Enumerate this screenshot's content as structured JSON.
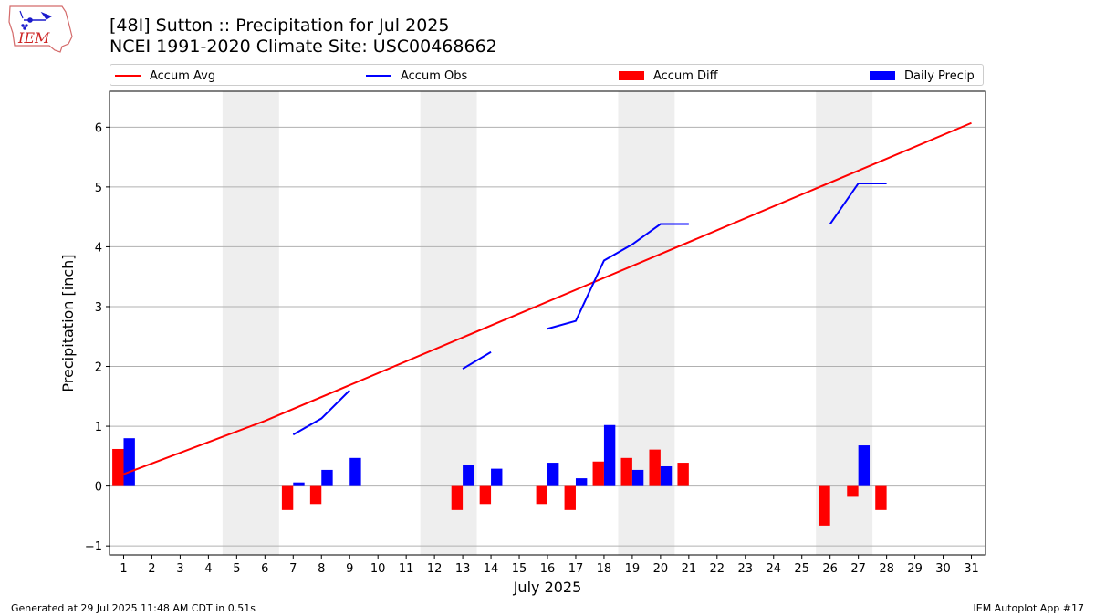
{
  "title_line1": "[48I] Sutton :: Precipitation for Jul 2025",
  "title_line2": "NCEI 1991-2020 Climate Site: USC00468662",
  "logo_text": "IEM",
  "legend": [
    {
      "label": "Accum Avg",
      "kind": "line",
      "color": "#ff0000"
    },
    {
      "label": "Accum Obs",
      "kind": "line",
      "color": "#0000ff"
    },
    {
      "label": "Accum Diff",
      "kind": "box",
      "color": "#ff0000"
    },
    {
      "label": "Daily Precip",
      "kind": "box",
      "color": "#0000ff"
    }
  ],
  "footer_left": "Generated at 29 Jul 2025 11:48 AM CDT in 0.51s",
  "footer_right": "IEM Autoplot App #17",
  "chart_data": {
    "type": "bar",
    "xlabel": "July 2025",
    "ylabel": "Precipitation [inch]",
    "ylim": [
      -1.15,
      6.6
    ],
    "xlim": [
      0.5,
      31.5
    ],
    "yticks": [
      -1,
      0,
      1,
      2,
      3,
      4,
      5,
      6
    ],
    "xticks": [
      1,
      2,
      3,
      4,
      5,
      6,
      7,
      8,
      9,
      10,
      11,
      12,
      13,
      14,
      15,
      16,
      17,
      18,
      19,
      20,
      21,
      22,
      23,
      24,
      25,
      26,
      27,
      28,
      29,
      30,
      31
    ],
    "grid": "horizontal",
    "legend_position": "top",
    "weekend_shading": [
      [
        4.5,
        6.5
      ],
      [
        11.5,
        13.5
      ],
      [
        18.5,
        20.5
      ],
      [
        25.5,
        27.5
      ]
    ],
    "accum_avg": {
      "x": [
        1,
        6,
        31
      ],
      "y": [
        0.2,
        1.09,
        6.07
      ]
    },
    "accum_obs_segments": [
      {
        "x": [
          7,
          8,
          9
        ],
        "y": [
          0.86,
          1.13,
          1.6
        ]
      },
      {
        "x": [
          13,
          14
        ],
        "y": [
          1.96,
          2.24
        ]
      },
      {
        "x": [
          16,
          17,
          18,
          19,
          20,
          21
        ],
        "y": [
          2.63,
          2.76,
          3.77,
          4.04,
          4.38,
          4.38
        ]
      },
      {
        "x": [
          26,
          27,
          28
        ],
        "y": [
          4.38,
          5.06,
          5.06
        ]
      }
    ],
    "accum_diff": {
      "x": [
        1,
        7,
        8,
        13,
        14,
        16,
        17,
        18,
        19,
        20,
        21,
        26,
        27,
        28
      ],
      "y": [
        0.62,
        -0.4,
        -0.3,
        -0.4,
        -0.3,
        -0.3,
        -0.4,
        0.41,
        0.47,
        0.61,
        0.39,
        -0.66,
        -0.18,
        -0.4
      ]
    },
    "daily_precip": {
      "x": [
        1,
        7,
        8,
        9,
        13,
        14,
        16,
        17,
        18,
        19,
        20,
        27
      ],
      "y": [
        0.8,
        0.06,
        0.27,
        0.47,
        0.36,
        0.29,
        0.39,
        0.13,
        1.02,
        0.27,
        0.33,
        0.68
      ]
    }
  }
}
